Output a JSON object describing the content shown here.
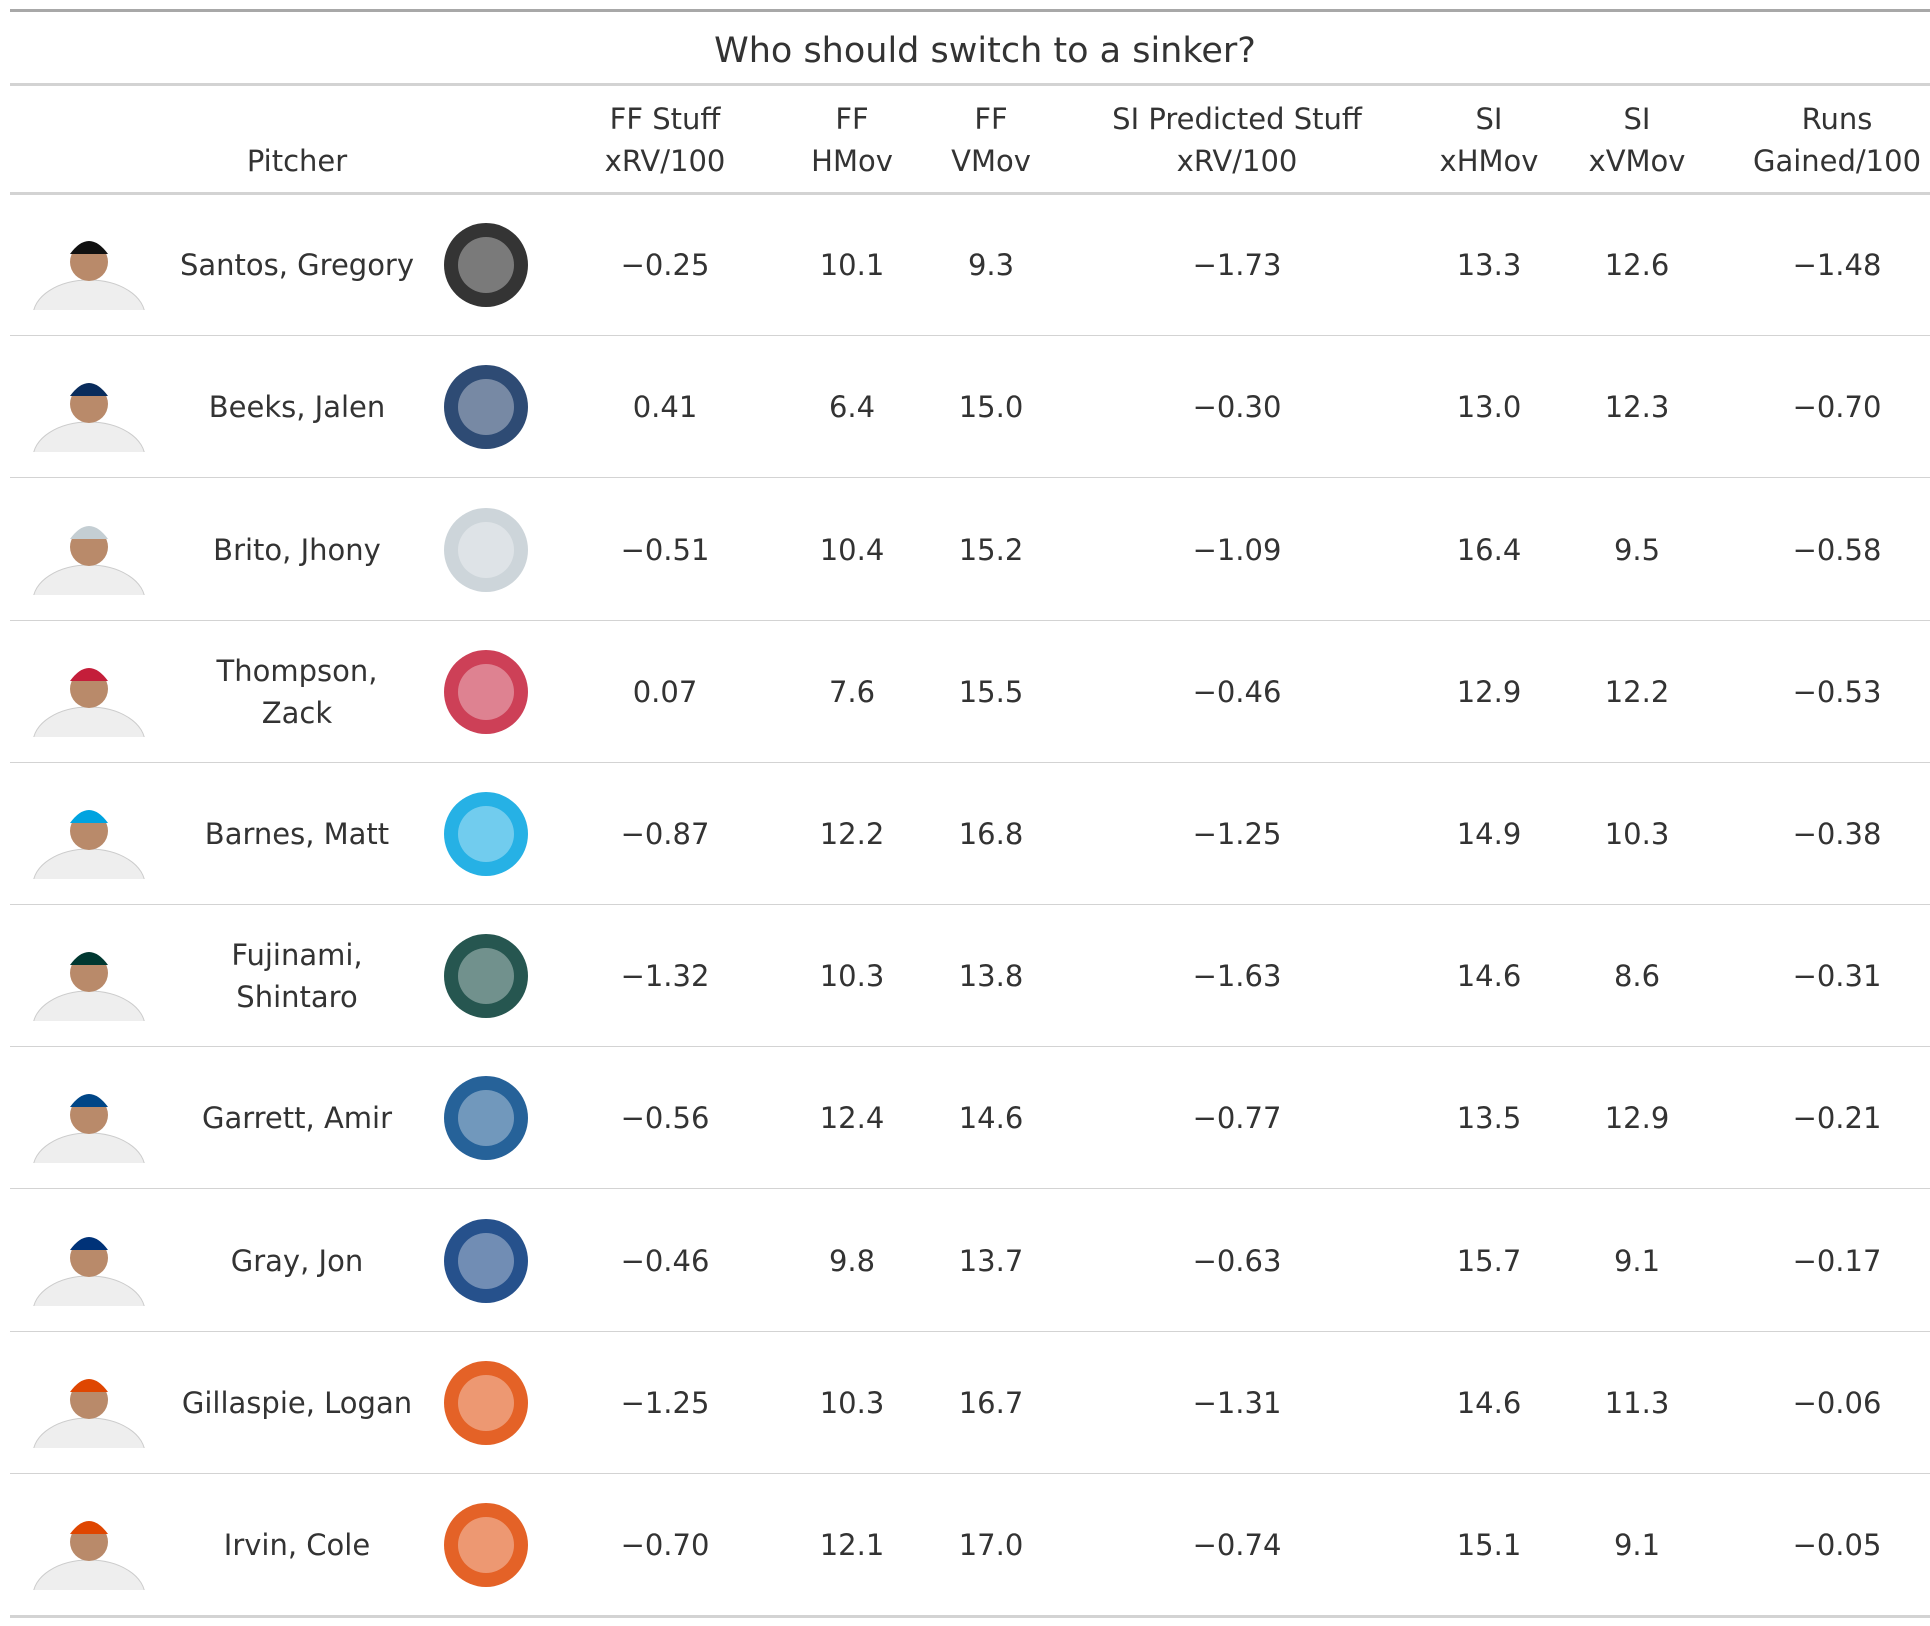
{
  "title": "Who should switch to a sinker?",
  "table": {
    "headers": [
      [
        "Pitcher"
      ],
      [
        "FF Stuff",
        "xRV/100"
      ],
      [
        "FF",
        "HMov"
      ],
      [
        "FF",
        "VMov"
      ],
      [
        "SI Predicted Stuff",
        "xRV/100"
      ],
      [
        "SI",
        "xHMov"
      ],
      [
        "SI",
        "xVMov"
      ],
      [
        "Runs",
        "Gained/100"
      ]
    ],
    "rows": [
      [
        "Santos, Gregory",
        "−0.25",
        "10.1",
        "9.3",
        "−1.73",
        "13.3",
        "12.6",
        "−1.48"
      ],
      [
        "Beeks, Jalen",
        "0.41",
        "6.4",
        "15.0",
        "−0.30",
        "13.0",
        "12.3",
        "−0.70"
      ],
      [
        "Brito, Jhony",
        "−0.51",
        "10.4",
        "15.2",
        "−1.09",
        "16.4",
        "9.5",
        "−0.58"
      ],
      [
        "Thompson, Zack",
        "0.07",
        "7.6",
        "15.5",
        "−0.46",
        "12.9",
        "12.2",
        "−0.53"
      ],
      [
        "Barnes, Matt",
        "−0.87",
        "12.2",
        "16.8",
        "−1.25",
        "14.9",
        "10.3",
        "−0.38"
      ],
      [
        "Fujinami, Shintaro",
        "−1.32",
        "10.3",
        "13.8",
        "−1.63",
        "14.6",
        "8.6",
        "−0.31"
      ],
      [
        "Garrett, Amir",
        "−0.56",
        "12.4",
        "14.6",
        "−0.77",
        "13.5",
        "12.9",
        "−0.21"
      ],
      [
        "Gray, Jon",
        "−0.46",
        "9.8",
        "13.7",
        "−0.63",
        "15.7",
        "9.1",
        "−0.17"
      ],
      [
        "Gillaspie, Logan",
        "−1.25",
        "10.3",
        "16.7",
        "−1.31",
        "14.6",
        "11.3",
        "−0.06"
      ],
      [
        "Irvin, Cole",
        "−0.70",
        "12.1",
        "17.0",
        "−0.74",
        "15.1",
        "9.1",
        "−0.05"
      ]
    ]
  }
}
